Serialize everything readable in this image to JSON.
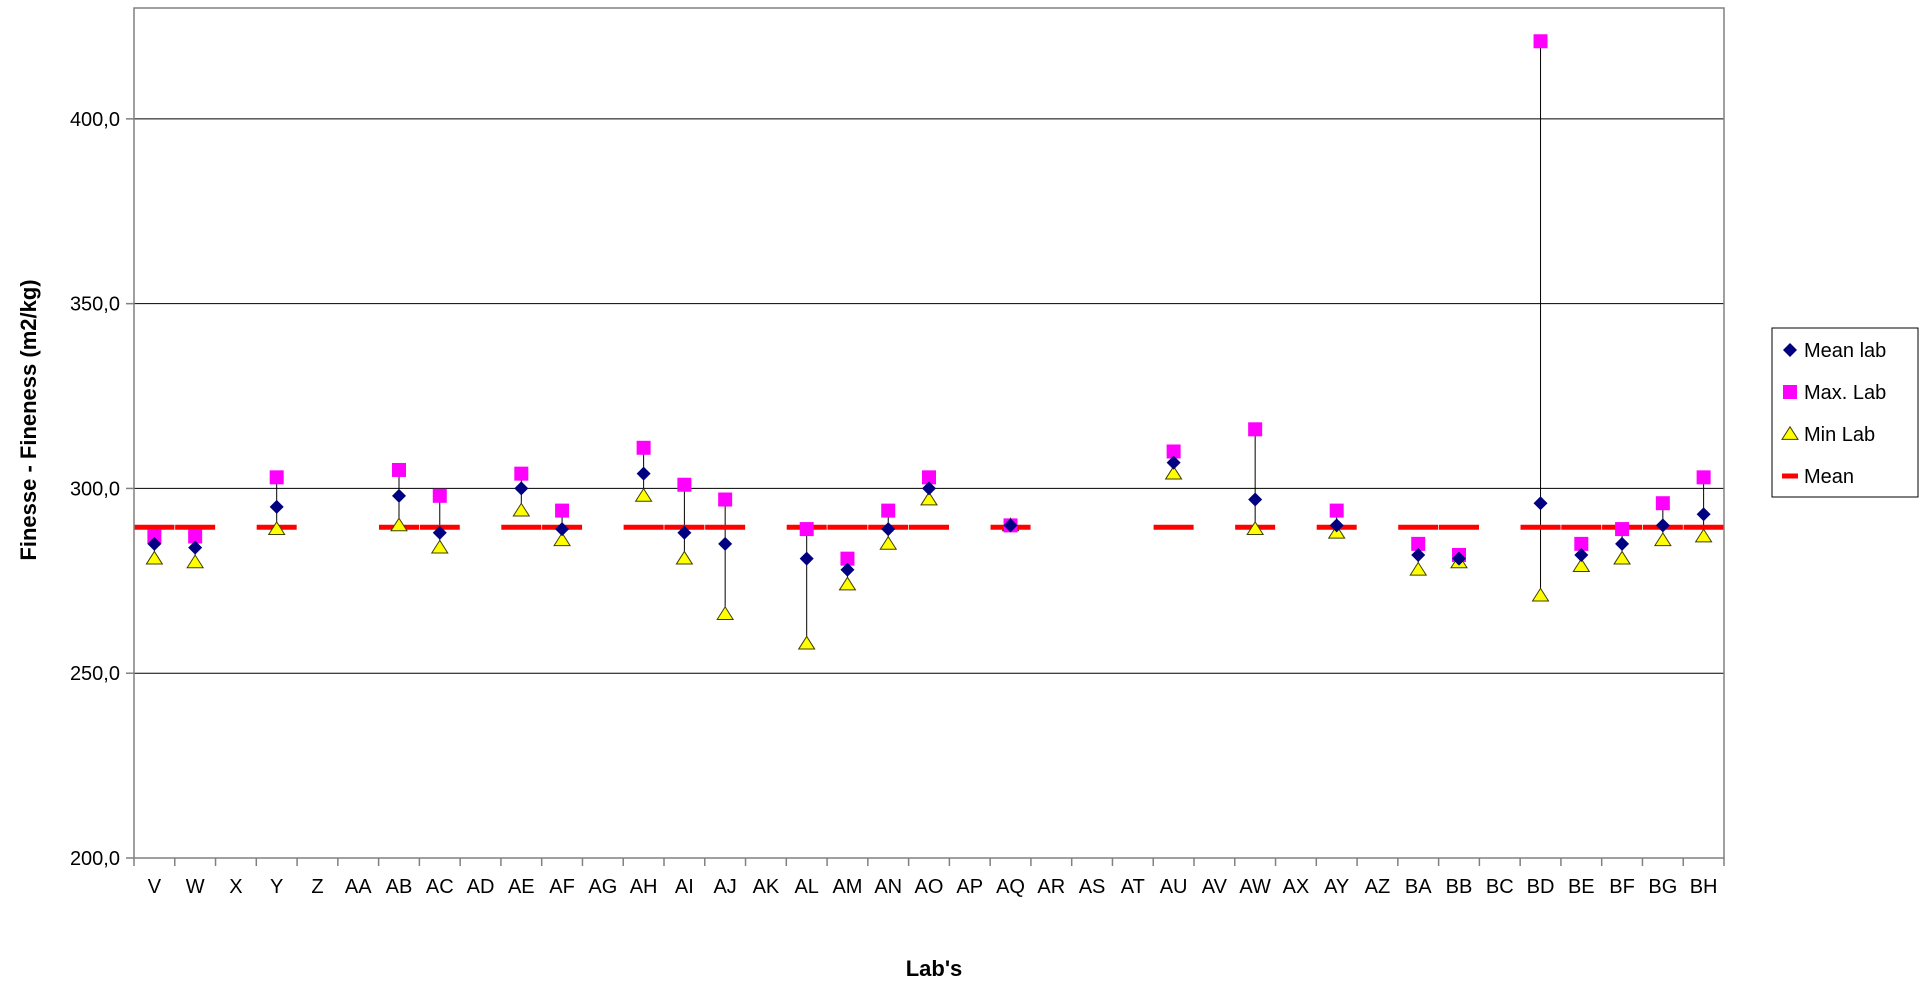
{
  "chart_data": {
    "type": "scatter",
    "title": "",
    "xlabel": "Lab's",
    "ylabel": "Finesse - Fineness (m2/kg)",
    "ylim": [
      200,
      430
    ],
    "yticks": [
      200,
      250,
      300,
      350,
      400
    ],
    "ytick_labels": [
      "200,0",
      "250,0",
      "300,0",
      "350,0",
      "400,0"
    ],
    "grid": true,
    "legend_position": "right",
    "categories": [
      "V",
      "W",
      "X",
      "Y",
      "Z",
      "AA",
      "AB",
      "AC",
      "AD",
      "AE",
      "AF",
      "AG",
      "AH",
      "AI",
      "AJ",
      "AK",
      "AL",
      "AM",
      "AN",
      "AO",
      "AP",
      "AQ",
      "AR",
      "AS",
      "AT",
      "AU",
      "AV",
      "AW",
      "AX",
      "AY",
      "AZ",
      "BA",
      "BB",
      "BC",
      "BD",
      "BE",
      "BF",
      "BG",
      "BH"
    ],
    "series": [
      {
        "name": "Mean lab",
        "marker": "diamond",
        "color": "#000080",
        "values": [
          285,
          284,
          null,
          295,
          null,
          null,
          298,
          288,
          null,
          300,
          289,
          null,
          304,
          288,
          285,
          null,
          281,
          278,
          289,
          300,
          null,
          290,
          null,
          null,
          null,
          307,
          null,
          297,
          null,
          290,
          null,
          282,
          281,
          null,
          296,
          282,
          285,
          290,
          293
        ]
      },
      {
        "name": "Max. Lab",
        "marker": "square",
        "color": "#ff00ff",
        "values": [
          287,
          287,
          null,
          303,
          null,
          null,
          305,
          298,
          null,
          304,
          294,
          null,
          311,
          301,
          297,
          null,
          289,
          281,
          294,
          303,
          null,
          290,
          null,
          null,
          null,
          310,
          null,
          316,
          null,
          294,
          null,
          285,
          282,
          null,
          421,
          285,
          289,
          296,
          303
        ]
      },
      {
        "name": "Min Lab",
        "marker": "triangle",
        "color": "#ffff00",
        "values": [
          281,
          280,
          null,
          289,
          null,
          null,
          290,
          284,
          null,
          294,
          286,
          null,
          298,
          281,
          266,
          null,
          258,
          274,
          285,
          297,
          null,
          290,
          null,
          null,
          null,
          304,
          null,
          289,
          null,
          288,
          null,
          278,
          280,
          null,
          271,
          279,
          281,
          286,
          287
        ]
      },
      {
        "name": "Mean",
        "marker": "dash",
        "color": "#ff0000",
        "values": [
          289.5,
          289.5,
          null,
          289.5,
          null,
          null,
          289.5,
          289.5,
          null,
          289.5,
          289.5,
          null,
          289.5,
          289.5,
          289.5,
          null,
          289.5,
          289.5,
          289.5,
          289.5,
          null,
          289.5,
          null,
          null,
          null,
          289.5,
          null,
          289.5,
          null,
          289.5,
          null,
          289.5,
          289.5,
          null,
          289.5,
          289.5,
          289.5,
          289.5,
          289.5
        ]
      }
    ]
  }
}
